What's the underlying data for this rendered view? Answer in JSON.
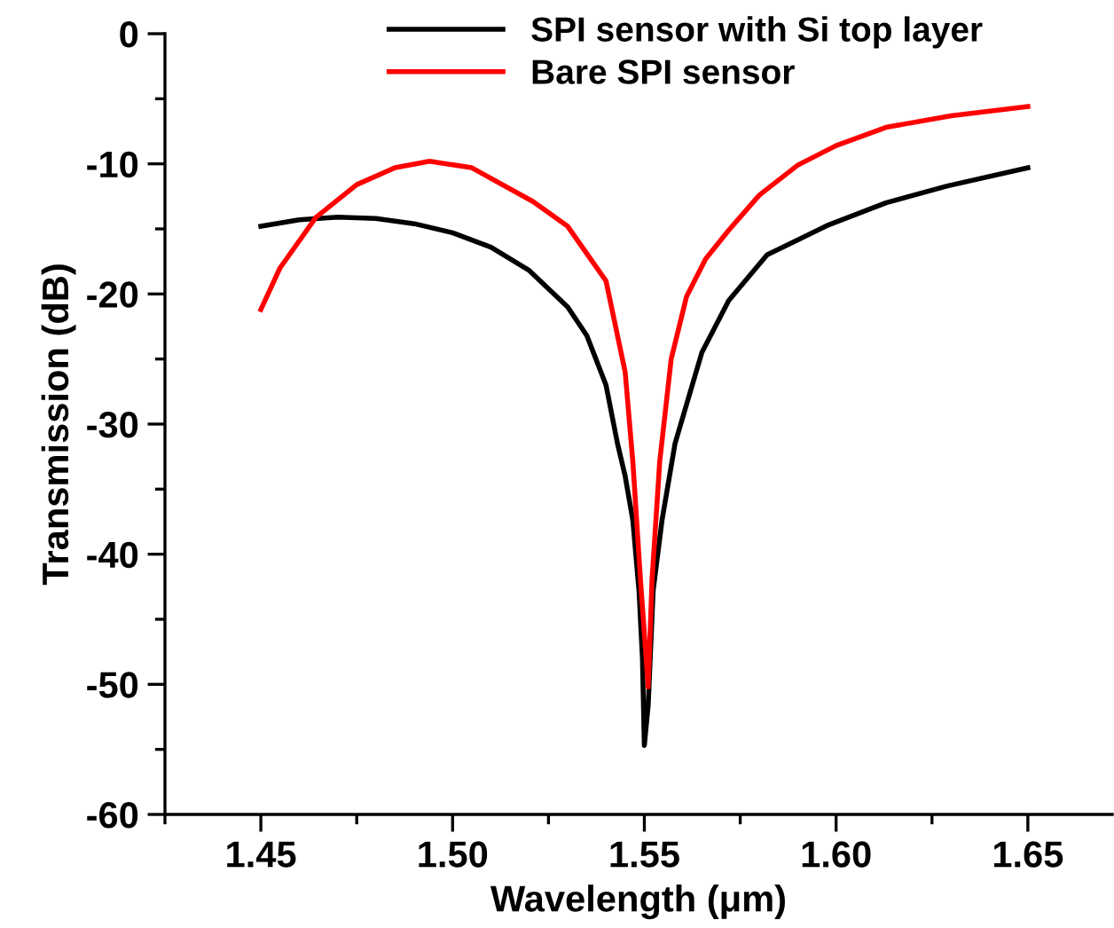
{
  "chart_data": {
    "type": "line",
    "xlabel": "Wavelength (μm)",
    "ylabel": "Transmission (dB)",
    "xlim": [
      1.425,
      1.672
    ],
    "ylim": [
      -60,
      0
    ],
    "xticks": [
      {
        "value": 1.45,
        "label": "1.45"
      },
      {
        "value": 1.5,
        "label": "1.50"
      },
      {
        "value": 1.55,
        "label": "1.55"
      },
      {
        "value": 1.6,
        "label": "1.60"
      },
      {
        "value": 1.65,
        "label": "1.65"
      }
    ],
    "yticks": [
      -60,
      -50,
      -40,
      -30,
      -20,
      -10,
      0
    ],
    "legend": "top",
    "grid": false,
    "marker": "none",
    "line_style": "solid",
    "series": [
      {
        "name": "SPI sensor with Si top layer",
        "color": "#000000",
        "x": [
          1.45,
          1.46,
          1.47,
          1.48,
          1.49,
          1.5,
          1.51,
          1.52,
          1.53,
          1.535,
          1.54,
          1.543,
          1.545,
          1.547,
          1.5486,
          1.5495,
          1.55,
          1.551,
          1.5523,
          1.5546,
          1.558,
          1.565,
          1.572,
          1.582,
          1.598,
          1.613,
          1.629,
          1.65
        ],
        "values": [
          -14.8,
          -14.3,
          -14.1,
          -14.2,
          -14.6,
          -15.3,
          -16.4,
          -18.2,
          -21.0,
          -23.2,
          -27.0,
          -31.5,
          -34.0,
          -37.4,
          -42.8,
          -48.0,
          -54.7,
          -51.6,
          -42.8,
          -37.4,
          -31.5,
          -24.5,
          -20.5,
          -17.0,
          -14.7,
          -13.0,
          -11.7,
          -10.3
        ]
      },
      {
        "name": "Bare SPI sensor",
        "color": "#ff0000",
        "x": [
          1.45,
          1.455,
          1.4644,
          1.475,
          1.485,
          1.494,
          1.505,
          1.521,
          1.53,
          1.54,
          1.545,
          1.547,
          1.549,
          1.551,
          1.552,
          1.554,
          1.557,
          1.561,
          1.566,
          1.572,
          1.58,
          1.59,
          1.6,
          1.613,
          1.63,
          1.65
        ],
        "values": [
          -21.2,
          -18.0,
          -14.1,
          -11.6,
          -10.3,
          -9.8,
          -10.3,
          -12.9,
          -14.8,
          -19.0,
          -26.0,
          -32.9,
          -42.0,
          -50.2,
          -42.0,
          -32.9,
          -25.0,
          -20.2,
          -17.3,
          -15.1,
          -12.4,
          -10.1,
          -8.6,
          -7.2,
          -6.3,
          -5.6
        ]
      }
    ]
  }
}
